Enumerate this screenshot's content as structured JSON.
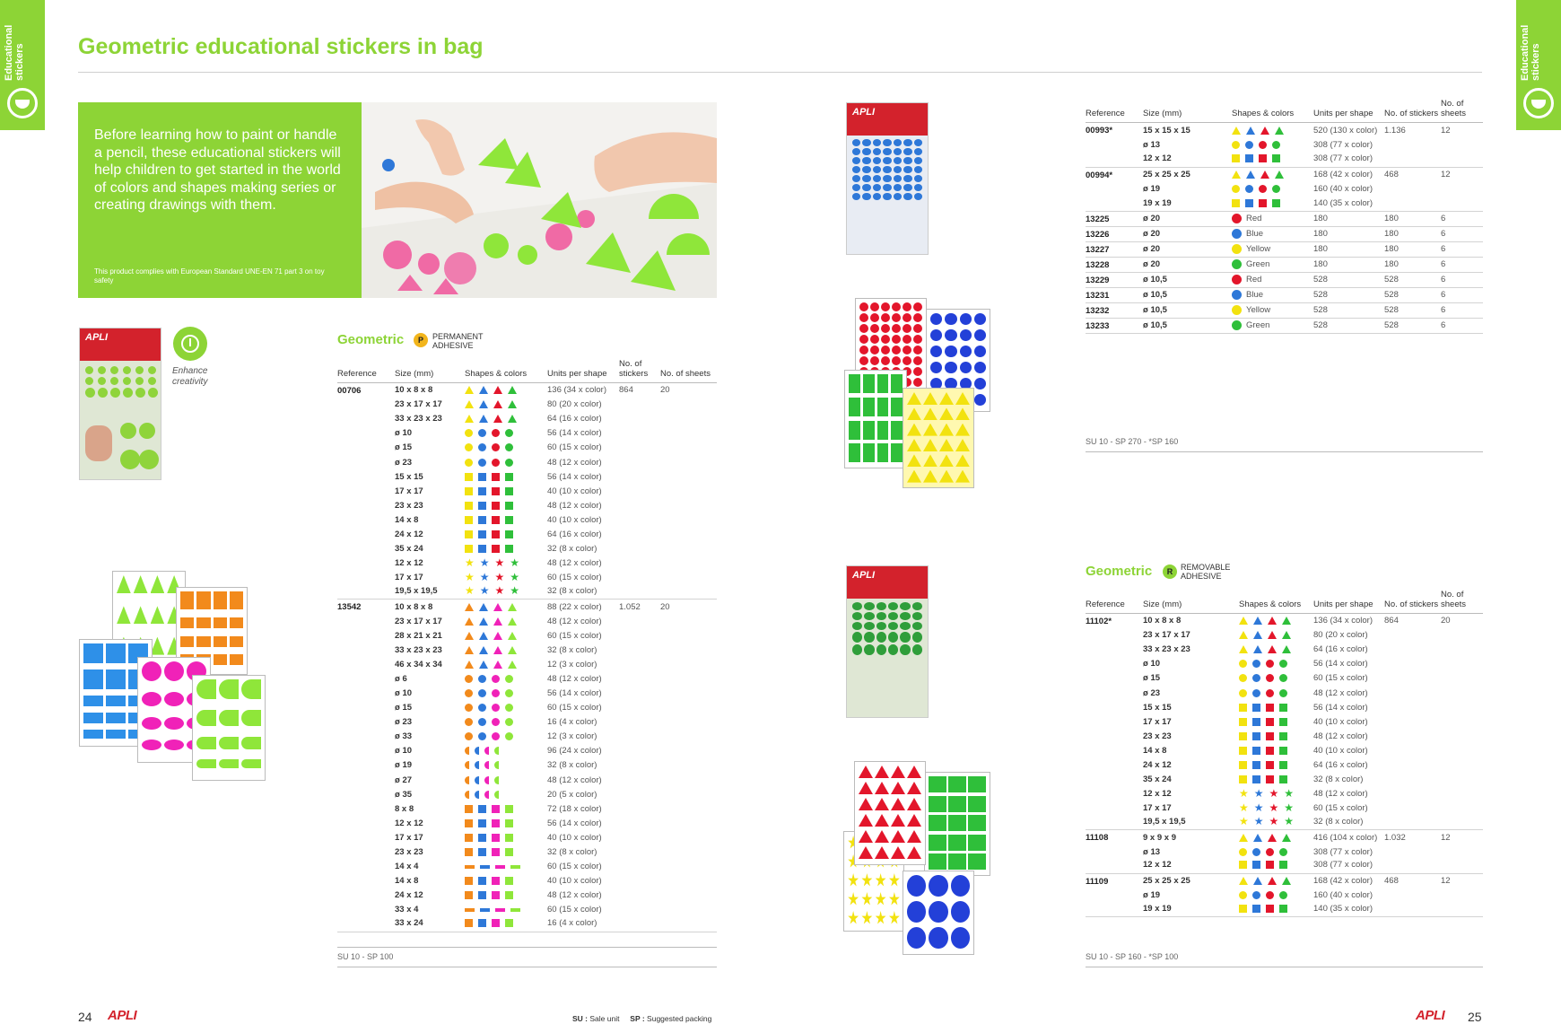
{
  "tab_label": "Educational stickers",
  "title": "Geometric educational stickers in bag",
  "intro": {
    "text": "Before learning how to paint or handle a pencil, these educational stickers will help children to get started in the world of colors and shapes making series or creating drawings with them.",
    "note": "This product complies with European Standard UNE-EN 71 part 3 on toy safety"
  },
  "brand": "APLI",
  "enhance_label": "Enhance creativity",
  "colors": {
    "accent": "#8dd436",
    "yellow": "#f2e20f",
    "blue": "#2e78d8",
    "red": "#e3162b",
    "green": "#2fbf3a",
    "orange": "#f28a1c",
    "pink": "#f022b8",
    "lime": "#8fe63a"
  },
  "headers": {
    "reference": "Reference",
    "size": "Size (mm)",
    "shapes": "Shapes & colors",
    "units": "Units per shape",
    "stickers": "No. of stickers",
    "sheets": "No. of sheets"
  },
  "section_permanent": {
    "title": "Geometric",
    "badge": "P",
    "adhesive": "PERMANENT ADHESIVE",
    "rows": [
      {
        "ref": "00706",
        "size": "10 x 8 x 8",
        "units": "136 (34 x color)",
        "stickers": "864",
        "sheets": "20"
      },
      {
        "size": "23 x 17 x 17",
        "units": "80 (20 x color)"
      },
      {
        "size": "33 x 23 x 23",
        "units": "64 (16 x color)"
      },
      {
        "size": "ø 10",
        "units": "56 (14 x color)"
      },
      {
        "size": "ø 15",
        "units": "60 (15 x color)"
      },
      {
        "size": "ø 23",
        "units": "48 (12 x color)"
      },
      {
        "size": "15 x 15",
        "units": "56 (14 x color)"
      },
      {
        "size": "17 x 17",
        "units": "40 (10 x color)"
      },
      {
        "size": "23 x 23",
        "units": "48 (12 x color)"
      },
      {
        "size": "14 x 8",
        "units": "40 (10 x color)"
      },
      {
        "size": "24 x 12",
        "units": "64 (16 x color)"
      },
      {
        "size": "35 x 24",
        "units": "32 (8 x color)"
      },
      {
        "size": "12 x 12",
        "units": "48 (12 x color)"
      },
      {
        "size": "17 x 17",
        "units": "60 (15 x color)"
      },
      {
        "size": "19,5 x 19,5",
        "units": "32 (8 x color)"
      },
      {
        "ref": "13542",
        "size": "10 x 8 x 8",
        "units": "88 (22 x color)",
        "stickers": "1.052",
        "sheets": "20"
      },
      {
        "size": "23 x 17 x 17",
        "units": "48 (12 x color)"
      },
      {
        "size": "28 x 21 x 21",
        "units": "60 (15 x color)"
      },
      {
        "size": "33 x 23 x 23",
        "units": "32 (8 x color)"
      },
      {
        "size": "46 x 34 x 34",
        "units": "12 (3 x color)"
      },
      {
        "size": "ø 6",
        "units": "48 (12 x color)"
      },
      {
        "size": "ø 10",
        "units": "56 (14 x color)"
      },
      {
        "size": "ø 15",
        "units": "60 (15 x color)"
      },
      {
        "size": "ø 23",
        "units": "16 (4 x color)"
      },
      {
        "size": "ø 33",
        "units": "12 (3 x color)"
      },
      {
        "size": "ø 10",
        "units": "96 (24 x color)"
      },
      {
        "size": "ø 19",
        "units": "32 (8 x color)"
      },
      {
        "size": "ø 27",
        "units": "48 (12 x color)"
      },
      {
        "size": "ø 35",
        "units": "20 (5 x color)"
      },
      {
        "size": "8 x 8",
        "units": "72 (18 x color)"
      },
      {
        "size": "12 x 12",
        "units": "56 (14 x color)"
      },
      {
        "size": "17 x 17",
        "units": "40 (10 x color)"
      },
      {
        "size": "23 x 23",
        "units": "32 (8 x color)"
      },
      {
        "size": "14 x 4",
        "units": "60 (15 x color)"
      },
      {
        "size": "14 x 8",
        "units": "40 (10 x color)"
      },
      {
        "size": "24 x 12",
        "units": "48 (12 x color)"
      },
      {
        "size": "33 x 4",
        "units": "60 (15 x color)"
      },
      {
        "size": "33 x 24",
        "units": "16 (4 x color)"
      }
    ],
    "footnote": "SU 10 - SP 100"
  },
  "section_top_right": {
    "rows": [
      {
        "ref": "00993*",
        "size": "15 x 15 x 15",
        "units": "520 (130 x color)",
        "stickers": "1.136",
        "sheets": "12"
      },
      {
        "size": "ø 13",
        "units": "308 (77 x color)"
      },
      {
        "size": "12 x 12",
        "units": "308 (77 x color)"
      },
      {
        "ref": "00994*",
        "size": "25 x 25 x 25",
        "units": "168 (42 x color)",
        "stickers": "468",
        "sheets": "12"
      },
      {
        "size": "ø 19",
        "units": "160 (40 x color)"
      },
      {
        "size": "19 x 19",
        "units": "140 (35 x color)"
      },
      {
        "ref": "13225",
        "size": "ø 20",
        "color": "Red",
        "units": "180",
        "stickers": "180",
        "sheets": "6"
      },
      {
        "ref": "13226",
        "size": "ø 20",
        "color": "Blue",
        "units": "180",
        "stickers": "180",
        "sheets": "6"
      },
      {
        "ref": "13227",
        "size": "ø 20",
        "color": "Yellow",
        "units": "180",
        "stickers": "180",
        "sheets": "6"
      },
      {
        "ref": "13228",
        "size": "ø 20",
        "color": "Green",
        "units": "180",
        "stickers": "180",
        "sheets": "6"
      },
      {
        "ref": "13229",
        "size": "ø 10,5",
        "color": "Red",
        "units": "528",
        "stickers": "528",
        "sheets": "6"
      },
      {
        "ref": "13231",
        "size": "ø 10,5",
        "color": "Blue",
        "units": "528",
        "stickers": "528",
        "sheets": "6"
      },
      {
        "ref": "13232",
        "size": "ø 10,5",
        "color": "Yellow",
        "units": "528",
        "stickers": "528",
        "sheets": "6"
      },
      {
        "ref": "13233",
        "size": "ø 10,5",
        "color": "Green",
        "units": "528",
        "stickers": "528",
        "sheets": "6"
      }
    ],
    "footnote": "SU 10 - SP 270 - *SP 160"
  },
  "section_removable": {
    "title": "Geometric",
    "badge": "R",
    "adhesive": "REMOVABLE ADHESIVE",
    "rows": [
      {
        "ref": "11102*",
        "size": "10 x 8 x 8",
        "units": "136 (34 x color)",
        "stickers": "864",
        "sheets": "20"
      },
      {
        "size": "23 x 17 x 17",
        "units": "80 (20 x color)"
      },
      {
        "size": "33 x 23 x 23",
        "units": "64 (16 x color)"
      },
      {
        "size": "ø 10",
        "units": "56 (14 x color)"
      },
      {
        "size": "ø 15",
        "units": "60 (15 x color)"
      },
      {
        "size": "ø 23",
        "units": "48 (12 x color)"
      },
      {
        "size": "15 x 15",
        "units": "56 (14 x color)"
      },
      {
        "size": "17 x 17",
        "units": "40 (10 x color)"
      },
      {
        "size": "23 x 23",
        "units": "48 (12 x color)"
      },
      {
        "size": "14 x 8",
        "units": "40 (10 x color)"
      },
      {
        "size": "24 x 12",
        "units": "64 (16 x color)"
      },
      {
        "size": "35 x 24",
        "units": "32 (8 x color)"
      },
      {
        "size": "12 x 12",
        "units": "48 (12 x color)"
      },
      {
        "size": "17 x 17",
        "units": "60 (15 x color)"
      },
      {
        "size": "19,5 x 19,5",
        "units": "32 (8 x color)"
      },
      {
        "ref": "11108",
        "size": "9 x 9 x 9",
        "units": "416 (104 x color)",
        "stickers": "1.032",
        "sheets": "12"
      },
      {
        "size": "ø 13",
        "units": "308 (77 x color)"
      },
      {
        "size": "12 x 12",
        "units": "308 (77 x color)"
      },
      {
        "ref": "11109",
        "size": "25 x 25 x 25",
        "units": "168 (42 x color)",
        "stickers": "468",
        "sheets": "12"
      },
      {
        "size": "ø 19",
        "units": "160 (40 x color)"
      },
      {
        "size": "19 x 19",
        "units": "140 (35 x color)"
      }
    ],
    "footnote": "SU 10 - SP 160 - *SP 100"
  },
  "footer": {
    "page_left": "24",
    "page_right": "25",
    "su_key": "SU :",
    "su_val": "Sale unit",
    "sp_key": "SP :",
    "sp_val": "Suggested packing"
  }
}
